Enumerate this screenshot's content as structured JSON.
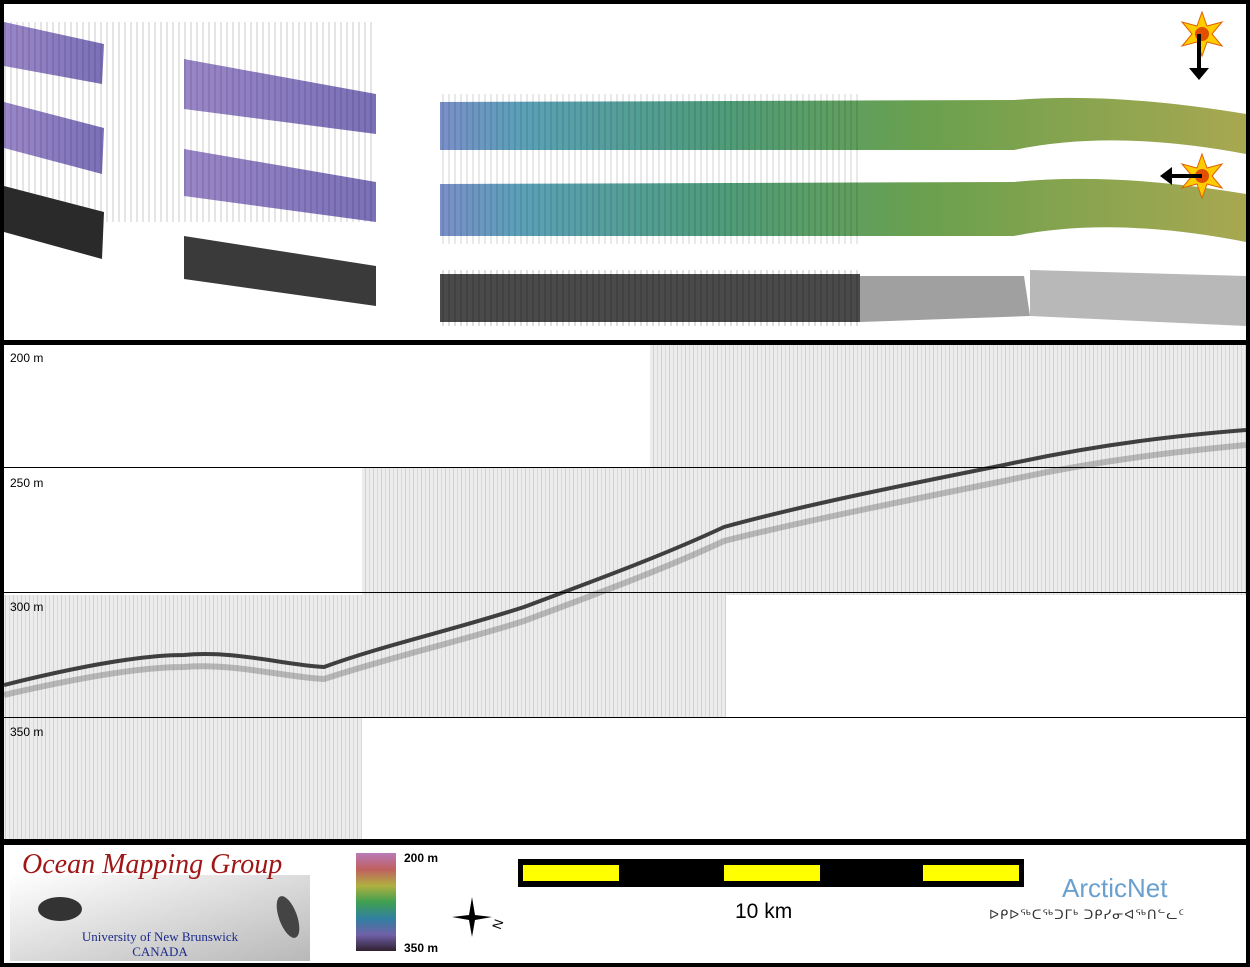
{
  "depth_labels": [
    "200 m",
    "250 m",
    "300 m",
    "350 m"
  ],
  "logo": {
    "title": "Ocean Mapping Group",
    "line1": "University of New Brunswick",
    "line2": "CANADA"
  },
  "colorbar": {
    "top": "200 m",
    "bottom": "350 m"
  },
  "compass": {
    "label": "N"
  },
  "scale_bar": {
    "label": "10 km"
  },
  "arcticnet": {
    "name": "ArcticNet",
    "syllabics": "ᐅᑭᐅᖅᑕᖅᑐᒥᒃ ᑐᑭᓯᓂᐊᖅᑎᓪᓚᑦ"
  },
  "colors": {
    "frame": "#000000",
    "scale_yellow": "#ffff00",
    "ogm_red": "#a01616",
    "arcticnet_blue": "#6aa0d0"
  }
}
